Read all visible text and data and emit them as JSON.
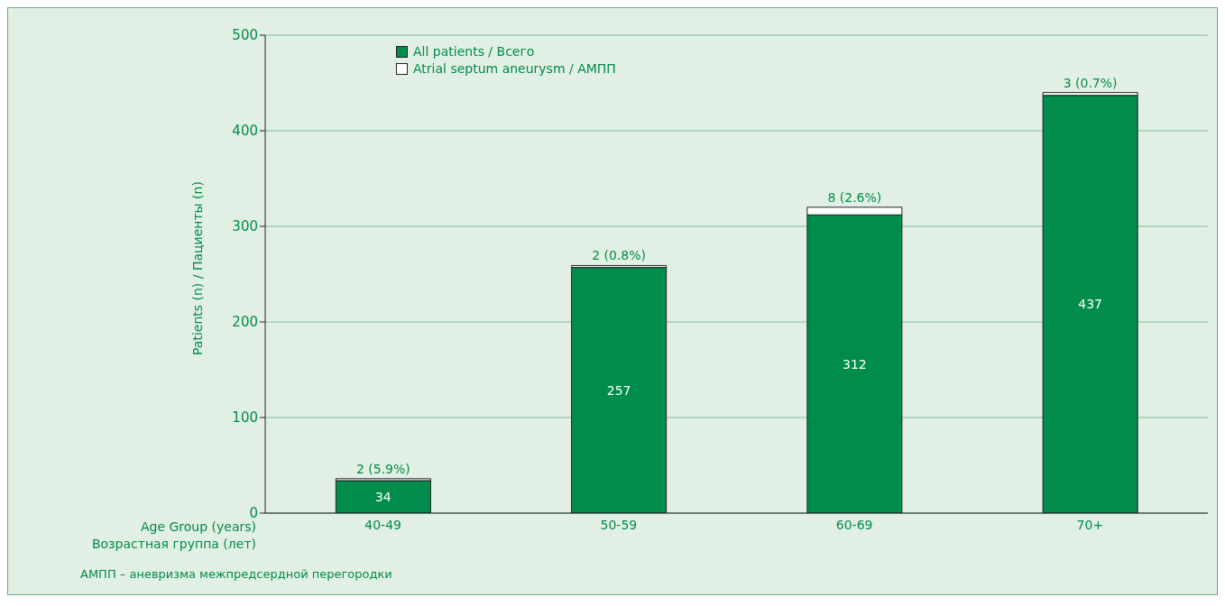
{
  "chart_data": {
    "type": "bar",
    "stacked": true,
    "categories": [
      "40-49",
      "50-59",
      "60-69",
      "70+"
    ],
    "series": [
      {
        "name": "All patients / Всего",
        "color": "#008c4a",
        "values": [
          34,
          257,
          312,
          437
        ],
        "value_labels": [
          "34",
          "257",
          "312",
          "437"
        ]
      },
      {
        "name": "Atrial septum aneurysm / АМПП",
        "color": "#ffffff",
        "values": [
          2,
          2,
          8,
          3
        ],
        "value_labels": [
          "2 (5.9%)",
          "2 (0.8%)",
          "8 (2.6%)",
          "3 (0.7%)"
        ]
      }
    ],
    "ylim": [
      0,
      500
    ],
    "yticks": [
      0,
      100,
      200,
      300,
      400,
      500
    ],
    "grid": "y",
    "legend": "top left",
    "ylabel": "Patients (n) / Пациенты (n)",
    "xlabel": "Age Group (years)\nВозрастная группа (лет)",
    "annotations": [
      "АМПП – аневризма межпредсердной перегородки"
    ]
  }
}
